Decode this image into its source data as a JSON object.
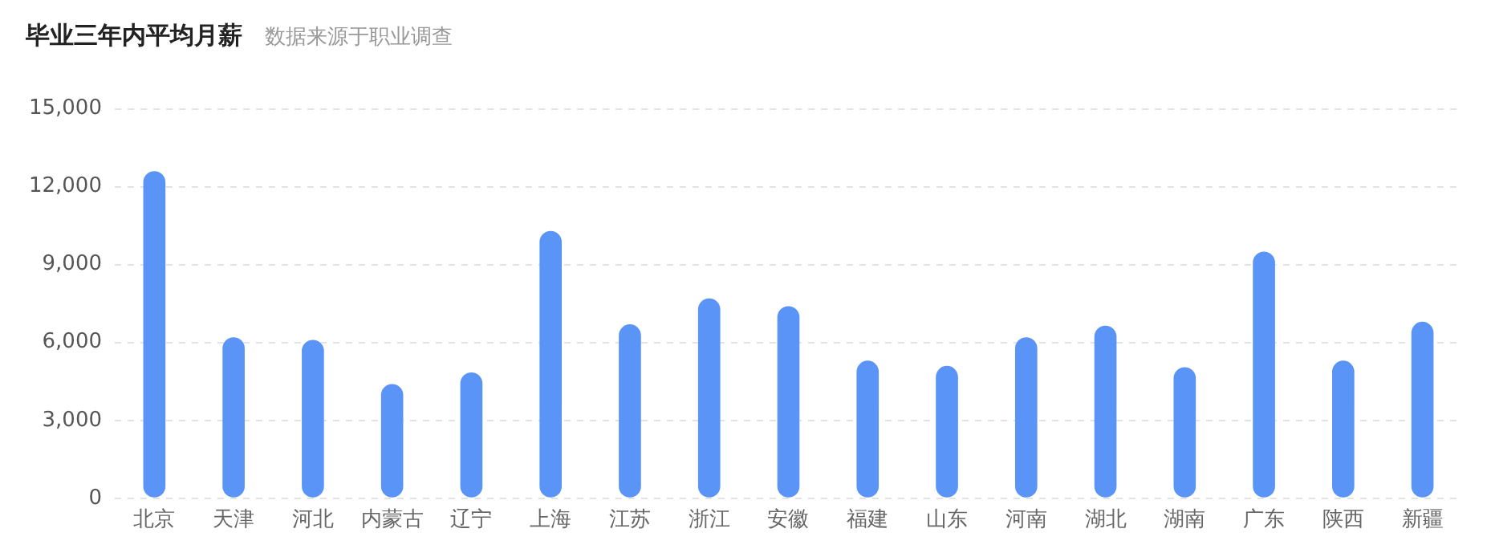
{
  "chart_data": {
    "type": "bar",
    "title": "毕业三年内平均月薪",
    "subtitle": "数据来源于职业调查",
    "categories": [
      "北京",
      "天津",
      "河北",
      "内蒙古",
      "辽宁",
      "上海",
      "江苏",
      "浙江",
      "安徽",
      "福建",
      "山东",
      "河南",
      "湖北",
      "湖南",
      "广东",
      "陕西",
      "新疆"
    ],
    "values": [
      12600,
      6200,
      6100,
      4400,
      4850,
      10300,
      6700,
      7700,
      7400,
      5300,
      5100,
      6200,
      6650,
      5050,
      9500,
      5300,
      6800
    ],
    "color": "#5b94f7",
    "ylim": [
      0,
      15000
    ],
    "yticks": [
      0,
      {
        "value": 3000,
        "label": "3,000"
      },
      {
        "value": 6000,
        "label": "6,000"
      },
      {
        "value": 9000,
        "label": "9,000"
      },
      {
        "value": 12000,
        "label": "12,000"
      },
      {
        "value": 15000,
        "label": "15,000"
      }
    ],
    "grid": "y"
  }
}
